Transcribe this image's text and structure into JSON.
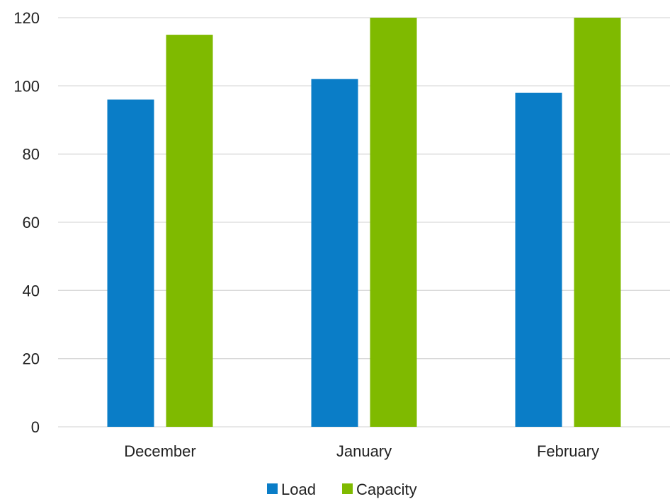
{
  "chart_data": {
    "type": "bar",
    "categories": [
      "December",
      "January",
      "February"
    ],
    "series": [
      {
        "name": "Load",
        "values": [
          96,
          102,
          98
        ],
        "color": "#0a7dc7"
      },
      {
        "name": "Capacity",
        "values": [
          115,
          120,
          120
        ],
        "color": "#7fba00"
      }
    ],
    "ylim": [
      0,
      120
    ],
    "yticks": [
      0,
      20,
      40,
      60,
      80,
      100,
      120
    ],
    "title": "",
    "xlabel": "",
    "ylabel": "",
    "grid": true,
    "legend": "bottom-center"
  }
}
